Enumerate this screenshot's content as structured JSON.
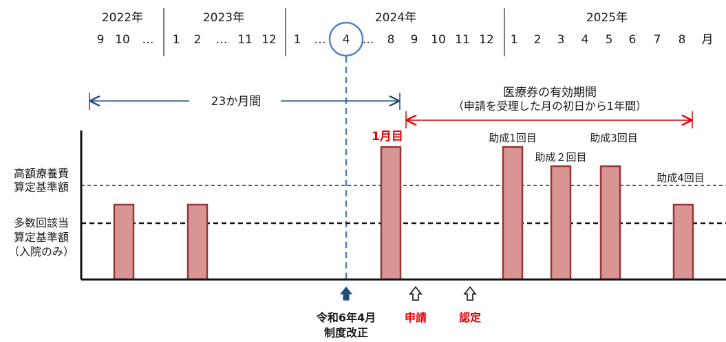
{
  "timeline": {
    "years": [
      {
        "label": "2022年"
      },
      {
        "label": "2023年"
      },
      {
        "label": "2024年"
      },
      {
        "label": "2025年"
      }
    ],
    "months": [
      "9",
      "10",
      "…",
      "1",
      "2",
      "…",
      "11",
      "12",
      "1",
      "…",
      "4",
      "…",
      "8",
      "9",
      "10",
      "11",
      "12",
      "1",
      "2",
      "3",
      "4",
      "5",
      "6",
      "7",
      "8",
      "月"
    ],
    "highlight_month": "4"
  },
  "spans": {
    "lookback_label": "23か月間",
    "validity_title": "医療券の有効期間",
    "validity_subtitle": "（申請を受理した月の初日から1年間）"
  },
  "lines": {
    "upper_label_1": "高額療養費",
    "upper_label_2": "算定基準額",
    "lower_label_1": "多数回該当",
    "lower_label_2": "算定基準額",
    "lower_label_3": "（入院のみ）"
  },
  "bars": [
    {
      "level": "medium",
      "label": ""
    },
    {
      "level": "medium",
      "label": ""
    },
    {
      "level": "high",
      "label": "1月目"
    },
    {
      "level": "high",
      "label": "助成1回目"
    },
    {
      "level": "mid_high",
      "label": "助成２回目"
    },
    {
      "level": "mid_high",
      "label": "助成3回目"
    },
    {
      "level": "medium",
      "label": "助成4回目"
    }
  ],
  "markers": {
    "reform_line1": "令和6年4月",
    "reform_line2": "制度改正",
    "apply": "申請",
    "certify": "認定"
  },
  "colors": {
    "bar_fill": "#d99594",
    "bar_stroke": "#943634",
    "accent_red": "#e00000",
    "reform_blue": "#4f81bd",
    "lookback_blue": "#1f4e79"
  }
}
